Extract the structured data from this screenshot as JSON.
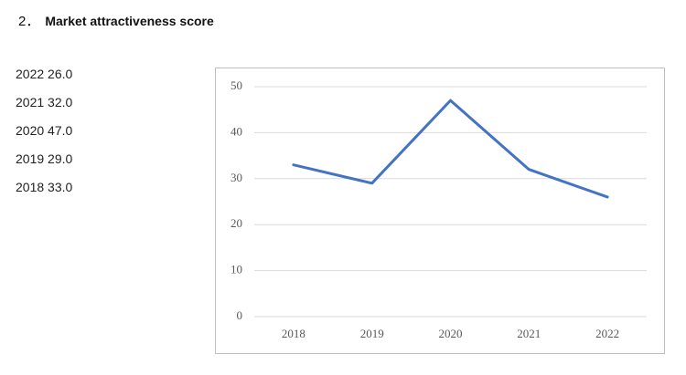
{
  "heading": {
    "number": "2．",
    "title": "Market attractiveness score"
  },
  "list": [
    "2022 26.0",
    "2021 32.0",
    "2020 47.0",
    "2019 29.0",
    "2018 33.0"
  ],
  "chart_data": {
    "type": "line",
    "categories": [
      "2018",
      "2019",
      "2020",
      "2021",
      "2022"
    ],
    "values": [
      33,
      29,
      47,
      32,
      26
    ],
    "color": "#4472c4",
    "ylim": [
      0,
      50
    ],
    "yticks": [
      0,
      10,
      20,
      30,
      40,
      50
    ],
    "grid": true
  }
}
